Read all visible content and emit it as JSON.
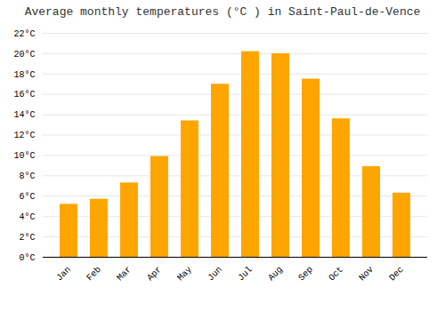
{
  "chart_data": {
    "type": "bar",
    "title": "Average monthly temperatures (°C ) in Saint-Paul-de-Vence",
    "categories": [
      "Jan",
      "Feb",
      "Mar",
      "Apr",
      "May",
      "Jun",
      "Jul",
      "Aug",
      "Sep",
      "Oct",
      "Nov",
      "Dec"
    ],
    "values": [
      5.2,
      5.7,
      7.3,
      9.9,
      13.4,
      17.0,
      20.2,
      20.0,
      17.5,
      13.6,
      8.9,
      6.3
    ],
    "color": "#FFA500",
    "ylim": [
      0,
      22
    ],
    "yticks": [
      {
        "value": 0,
        "label": "0°C"
      },
      {
        "value": 2,
        "label": "2°C"
      },
      {
        "value": 4,
        "label": "4°C"
      },
      {
        "value": 6,
        "label": "6°C"
      },
      {
        "value": 8,
        "label": "8°C"
      },
      {
        "value": 10,
        "label": "10°C"
      },
      {
        "value": 12,
        "label": "12°C"
      },
      {
        "value": 14,
        "label": "14°C"
      },
      {
        "value": 16,
        "label": "16°C"
      },
      {
        "value": 18,
        "label": "18°C"
      },
      {
        "value": 20,
        "label": "20°C"
      },
      {
        "value": 22,
        "label": "22°C"
      }
    ],
    "grid": true
  }
}
